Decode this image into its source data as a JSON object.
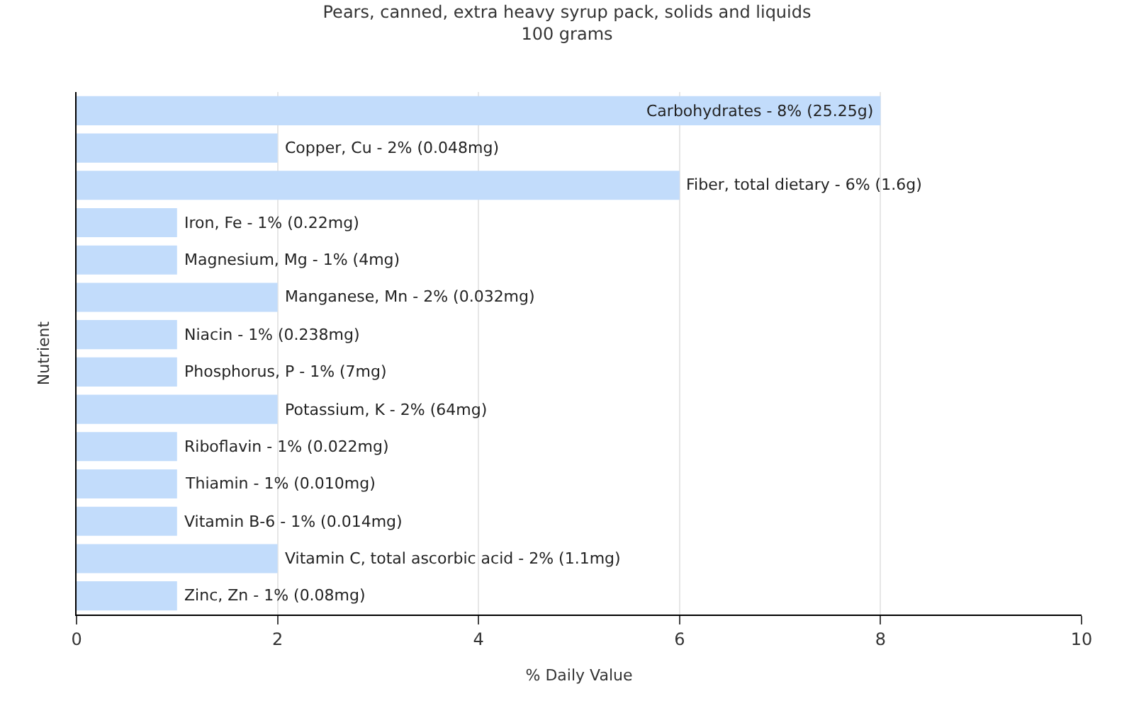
{
  "chart_data": {
    "type": "bar",
    "orientation": "horizontal",
    "title": "Pears, canned, extra heavy syrup pack, solids and liquids",
    "subtitle": "100 grams",
    "xlabel": "% Daily Value",
    "ylabel": "Nutrient",
    "categories": [
      null,
      null,
      null,
      null,
      null,
      null,
      null,
      null,
      null,
      null,
      null,
      null,
      null,
      null
    ],
    "values": [
      8,
      2,
      6,
      1,
      1,
      2,
      1,
      1,
      2,
      1,
      1,
      1,
      2,
      1
    ],
    "annotations": [
      {
        "text": "Carbohydrates - 8% (25.25g)",
        "x": 8
      },
      {
        "text": "Copper, Cu - 2% (0.048mg)",
        "x": 2
      },
      {
        "text": "Fiber, total dietary - 6% (1.6g)",
        "x": 6
      },
      {
        "text": "Iron, Fe - 1% (0.22mg)",
        "x": 1
      },
      {
        "text": "Magnesium, Mg - 1% (4mg)",
        "x": 1
      },
      {
        "text": "Manganese, Mn - 2% (0.032mg)",
        "x": 2
      },
      {
        "text": "Niacin - 1% (0.238mg)",
        "x": 1
      },
      {
        "text": "Phosphorus, P - 1% (7mg)",
        "x": 1
      },
      {
        "text": "Potassium, K - 2% (64mg)",
        "x": 2
      },
      {
        "text": "Riboflavin - 1% (0.022mg)",
        "x": 1
      },
      {
        "text": "Thiamin - 1% (0.010mg)",
        "x": 1
      },
      {
        "text": "Vitamin B-6 - 1% (0.014mg)",
        "x": 1
      },
      {
        "text": "Vitamin C, total ascorbic acid - 2% (1.1mg)",
        "x": 2
      },
      {
        "text": "Zinc, Zn - 1% (0.08mg)",
        "x": 1
      }
    ],
    "color": "#c2dcfb",
    "xlim": [
      0,
      10
    ],
    "xticks": [
      0,
      2,
      4,
      6,
      8,
      10
    ],
    "grid": "x",
    "legend": false,
    "tick_labels": "x"
  }
}
